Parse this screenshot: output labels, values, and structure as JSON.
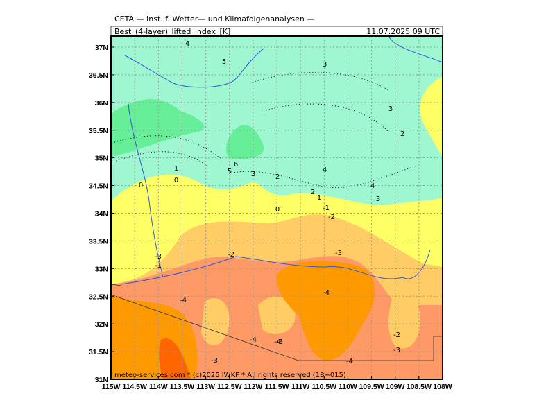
{
  "header": {
    "title": "CETA — Inst. f. Wetter— und Klimafolgenanalysen —",
    "field": "Best_(4-layer)_lifted_index_[K]",
    "time": "11.07.2025 09 UTC"
  },
  "x_axis": {
    "labels": [
      "115W",
      "114.5W",
      "114W",
      "113.5W",
      "113W",
      "112.5W",
      "112W",
      "111.5W",
      "111W",
      "110.5W",
      "110W",
      "109.5W",
      "109W",
      "108.5W",
      "108W"
    ]
  },
  "y_axis": {
    "labels": [
      "37N",
      "36.5N",
      "36N",
      "35.5N",
      "35N",
      "34.5N",
      "34N",
      "33.5N",
      "33N",
      "32.5N",
      "32N",
      "31.5N",
      "31N"
    ]
  },
  "contour_labels": [
    "4",
    "5",
    "3",
    "3",
    "2",
    "1",
    "0",
    "0",
    "5",
    "6",
    "3",
    "2",
    "4",
    "4",
    "3",
    "2",
    "1",
    "0",
    "-1",
    "-2",
    "-3",
    "-1",
    "-2",
    "-3",
    "-4",
    "-4",
    "-4",
    "-4",
    "-3",
    "-3",
    "-4",
    "-2",
    "-3"
  ],
  "footer": "meteo-services.com * (c)2025 IWKF * All rights reserved (18+015)"
}
